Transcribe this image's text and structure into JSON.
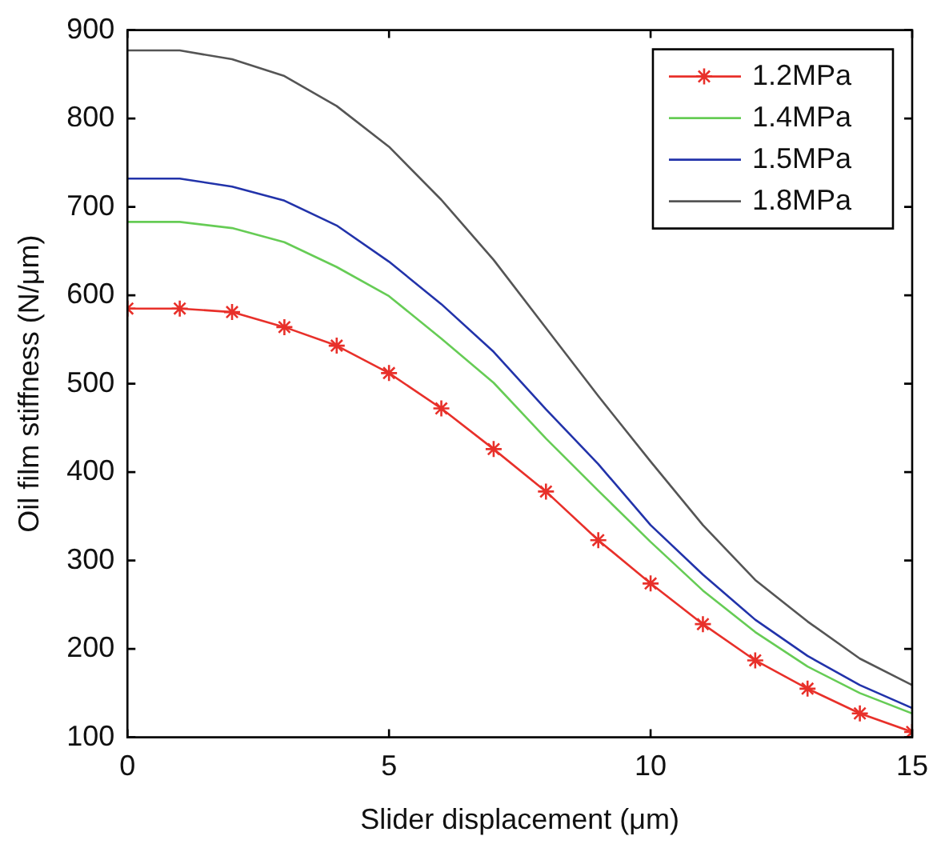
{
  "chart_data": {
    "type": "line",
    "xlabel": "Slider displacement (μm)",
    "ylabel": "Oil film stiffness (N/μm)",
    "x": [
      0,
      1,
      2,
      3,
      4,
      5,
      6,
      7,
      8,
      9,
      10,
      11,
      12,
      13,
      14,
      15
    ],
    "xlim": [
      0,
      15
    ],
    "xticks": [
      0,
      5,
      10,
      15
    ],
    "ylim": [
      100,
      900
    ],
    "yticks": [
      100,
      200,
      300,
      400,
      500,
      600,
      700,
      800,
      900
    ],
    "grid": false,
    "legend": "top right",
    "line_style": "solid",
    "series": [
      {
        "name": "1.2MPa",
        "color": "#e8302a",
        "marker": "cross",
        "values": [
          585,
          585,
          581,
          564,
          543,
          512,
          472,
          426,
          378,
          323,
          274,
          228,
          187,
          155,
          127,
          106
        ]
      },
      {
        "name": "1.4MPa",
        "color": "#66cc55",
        "marker": "none",
        "values": [
          683,
          683,
          676,
          660,
          632,
          599,
          551,
          501,
          438,
          379,
          321,
          266,
          219,
          180,
          150,
          127
        ]
      },
      {
        "name": "1.5MPa",
        "color": "#2233aa",
        "marker": "none",
        "values": [
          732,
          732,
          723,
          707,
          679,
          638,
          590,
          536,
          471,
          409,
          340,
          284,
          233,
          192,
          159,
          133
        ]
      },
      {
        "name": "1.8MPa",
        "color": "#555555",
        "marker": "none",
        "values": [
          877,
          877,
          867,
          848,
          814,
          768,
          708,
          640,
          563,
          486,
          412,
          340,
          278,
          231,
          189,
          159
        ]
      }
    ]
  }
}
